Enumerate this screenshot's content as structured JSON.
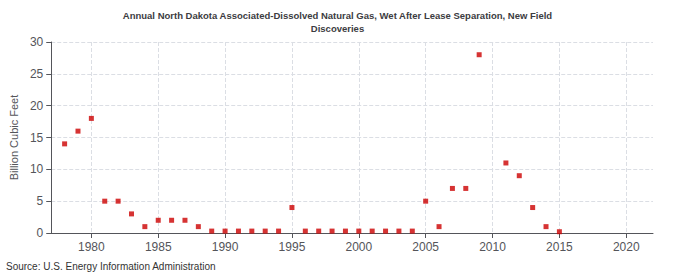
{
  "chart_data": {
    "type": "scatter",
    "title": "Annual North Dakota Associated-Dissolved Natural Gas, Wet After Lease Separation, New Field\nDiscoveries",
    "ylabel": "Billion Cubic Feet",
    "annotations": [
      "Source: U.S. Energy Information Administration"
    ],
    "x": [
      1978,
      1979,
      1980,
      1981,
      1982,
      1983,
      1984,
      1985,
      1986,
      1987,
      1988,
      1989,
      1990,
      1991,
      1992,
      1993,
      1994,
      1995,
      1996,
      1997,
      1998,
      1999,
      2000,
      2001,
      2002,
      2003,
      2004,
      2005,
      2006,
      2007,
      2008,
      2009,
      2011,
      2012,
      2013,
      2014,
      2015
    ],
    "values": [
      14.0,
      16.0,
      18.0,
      5.0,
      5.0,
      3.0,
      1.0,
      2.0,
      2.0,
      2.0,
      1.0,
      0.3,
      0.3,
      0.3,
      0.3,
      0.3,
      0.3,
      4.0,
      0.3,
      0.3,
      0.3,
      0.3,
      0.3,
      0.3,
      0.3,
      0.3,
      0.3,
      5.0,
      1.0,
      7.0,
      7.0,
      28.0,
      11.0,
      9.0,
      4.0,
      1.0,
      0.2
    ],
    "color": "#cc0000",
    "marker": "square",
    "xlim": [
      1977,
      2022
    ],
    "ylim": [
      0,
      30
    ],
    "xticks": [
      1980,
      1985,
      1990,
      1995,
      2000,
      2005,
      2010,
      2015,
      2020
    ],
    "yticks": [
      0,
      5,
      10,
      15,
      20,
      25,
      30
    ],
    "grid": true
  }
}
